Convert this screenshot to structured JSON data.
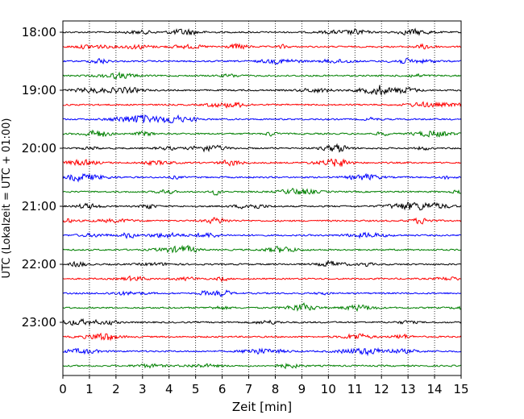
{
  "chart_data": {
    "type": "line",
    "subtype": "helicorder",
    "xlabel": "Zeit  [min]",
    "ylabel": "UTC (Lokalzeit = UTC + 01:00)",
    "xlim": [
      0,
      15
    ],
    "x_ticks": [
      "0",
      "1",
      "2",
      "3",
      "4",
      "5",
      "6",
      "7",
      "8",
      "9",
      "10",
      "11",
      "12",
      "13",
      "14",
      "15"
    ],
    "y_tick_labels": [
      "18:00",
      "19:00",
      "20:00",
      "21:00",
      "22:00",
      "23:00"
    ],
    "trace_start_times": [
      "18:00",
      "18:15",
      "18:30",
      "18:45",
      "19:00",
      "19:15",
      "19:30",
      "19:45",
      "20:00",
      "20:15",
      "20:30",
      "20:45",
      "21:00",
      "21:15",
      "21:30",
      "21:45",
      "22:00",
      "22:15",
      "22:30",
      "22:45",
      "23:00",
      "23:15",
      "23:30",
      "23:45"
    ],
    "trace_colors": [
      "#000000",
      "#ff0000",
      "#0000ff",
      "#008000"
    ],
    "minutes_per_trace": 15,
    "vertical_grid": "dotted",
    "horizontal_grid": false
  }
}
